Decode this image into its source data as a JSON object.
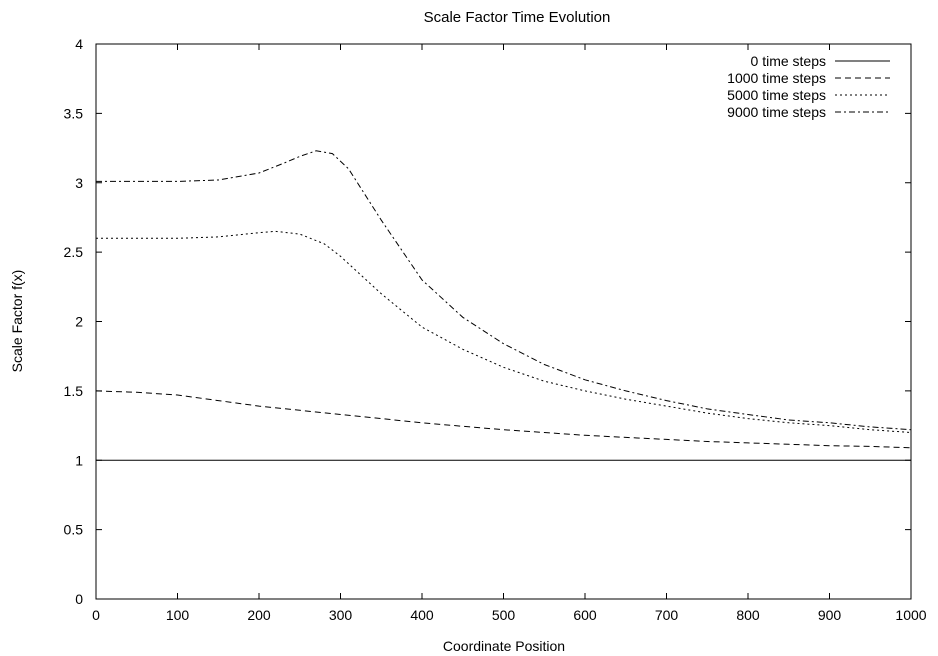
{
  "chart_data": {
    "type": "line",
    "title": "Scale Factor Time Evolution",
    "xlabel": "Coordinate Position",
    "ylabel": "Scale Factor f(x)",
    "xlim": [
      0,
      1000
    ],
    "ylim": [
      0,
      4
    ],
    "xticks": [
      0,
      100,
      200,
      300,
      400,
      500,
      600,
      700,
      800,
      900,
      1000
    ],
    "yticks": [
      0,
      0.5,
      1,
      1.5,
      2,
      2.5,
      3,
      3.5,
      4
    ],
    "ytick_labels": [
      "0",
      "0.5",
      "1",
      "1.5",
      "2",
      "2.5",
      "3",
      "3.5",
      "4"
    ],
    "grid": false,
    "legend_position": "top-right",
    "series": [
      {
        "name": "0 time steps",
        "dash": "solid",
        "x": [
          0,
          1000
        ],
        "y": [
          1.0,
          1.0
        ]
      },
      {
        "name": "1000 time steps",
        "dash": "dashed",
        "x": [
          0,
          50,
          100,
          150,
          200,
          250,
          300,
          350,
          400,
          450,
          500,
          550,
          600,
          650,
          700,
          750,
          800,
          850,
          900,
          950,
          1000
        ],
        "y": [
          1.5,
          1.49,
          1.47,
          1.43,
          1.39,
          1.36,
          1.33,
          1.3,
          1.27,
          1.245,
          1.22,
          1.2,
          1.18,
          1.165,
          1.15,
          1.135,
          1.125,
          1.115,
          1.105,
          1.1,
          1.09
        ]
      },
      {
        "name": "5000 time steps",
        "dash": "dotted",
        "x": [
          0,
          50,
          100,
          150,
          200,
          220,
          250,
          280,
          300,
          350,
          400,
          450,
          500,
          550,
          600,
          650,
          700,
          750,
          800,
          850,
          900,
          950,
          1000
        ],
        "y": [
          2.6,
          2.6,
          2.6,
          2.61,
          2.64,
          2.65,
          2.63,
          2.56,
          2.47,
          2.2,
          1.96,
          1.8,
          1.67,
          1.57,
          1.5,
          1.44,
          1.39,
          1.34,
          1.3,
          1.27,
          1.25,
          1.22,
          1.2
        ]
      },
      {
        "name": "9000 time steps",
        "dash": "dashdot",
        "x": [
          0,
          50,
          100,
          150,
          200,
          230,
          250,
          270,
          290,
          310,
          350,
          400,
          450,
          500,
          550,
          600,
          650,
          700,
          750,
          800,
          850,
          900,
          950,
          1000
        ],
        "y": [
          3.01,
          3.01,
          3.01,
          3.02,
          3.07,
          3.14,
          3.19,
          3.23,
          3.21,
          3.1,
          2.73,
          2.3,
          2.03,
          1.84,
          1.69,
          1.58,
          1.5,
          1.43,
          1.37,
          1.33,
          1.29,
          1.27,
          1.24,
          1.22
        ]
      }
    ]
  }
}
